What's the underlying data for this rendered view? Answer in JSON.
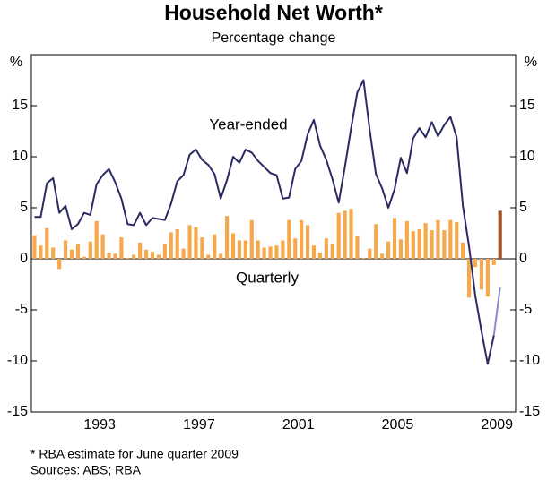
{
  "chart_data": {
    "type": "bar-line",
    "title": "Household Net Worth*",
    "subtitle": "Percentage change",
    "y_label": "%",
    "footnotes": [
      "*    RBA estimate for June quarter 2009",
      "Sources: ABS; RBA"
    ],
    "categories": [
      null,
      null,
      null,
      null,
      null,
      null,
      null,
      null,
      null,
      null,
      null,
      "1993",
      null,
      null,
      null,
      null,
      null,
      null,
      null,
      null,
      null,
      null,
      null,
      null,
      null,
      null,
      null,
      "1997",
      null,
      null,
      null,
      null,
      null,
      null,
      null,
      null,
      null,
      null,
      null,
      null,
      null,
      null,
      null,
      "2001",
      null,
      null,
      null,
      null,
      null,
      null,
      null,
      null,
      null,
      null,
      null,
      null,
      null,
      null,
      null,
      "2005",
      null,
      null,
      null,
      null,
      null,
      null,
      null,
      null,
      null,
      null,
      null,
      null,
      null,
      null,
      null,
      "2009",
      null,
      null
    ],
    "ylim": [
      -15,
      20
    ],
    "yticks": [
      -15,
      -10,
      -5,
      0,
      5,
      10,
      15
    ],
    "series": [
      {
        "name": "Year-ended",
        "type": "line",
        "color": "#2b2a63",
        "values": [
          4.1,
          4.1,
          7.4,
          7.9,
          4.5,
          5.2,
          2.9,
          3.4,
          4.5,
          4.3,
          7.3,
          8.2,
          8.8,
          7.5,
          5.9,
          3.4,
          3.3,
          4.5,
          3.3,
          4.0,
          3.9,
          3.8,
          5.4,
          7.6,
          8.2,
          10.2,
          10.7,
          9.7,
          9.2,
          8.3,
          5.9,
          7.7,
          10.0,
          9.4,
          10.7,
          10.4,
          9.6,
          9.0,
          8.4,
          8.2,
          5.9,
          6.0,
          8.8,
          9.6,
          12.2,
          13.6,
          11.1,
          9.7,
          7.8,
          5.5,
          9.0,
          12.8,
          16.3,
          17.5,
          12.6,
          8.3,
          6.9,
          5.0,
          6.8,
          9.9,
          8.4,
          11.8,
          12.8,
          11.9,
          13.4,
          12.0,
          13.1,
          13.9,
          11.9,
          5.2,
          1.2,
          -3.6,
          -7.1,
          -10.3,
          -7.5,
          -2.8,
          null,
          null
        ],
        "colors": [
          "#2b2a63",
          "#2b2a63",
          "#2b2a63",
          "#2b2a63",
          "#2b2a63",
          "#2b2a63",
          "#2b2a63",
          "#2b2a63",
          "#2b2a63",
          "#2b2a63",
          "#2b2a63",
          "#2b2a63",
          "#2b2a63",
          "#2b2a63",
          "#2b2a63",
          "#2b2a63",
          "#2b2a63",
          "#2b2a63",
          "#2b2a63",
          "#2b2a63",
          "#2b2a63",
          "#2b2a63",
          "#2b2a63",
          "#2b2a63",
          "#2b2a63",
          "#2b2a63",
          "#2b2a63",
          "#2b2a63",
          "#2b2a63",
          "#2b2a63",
          "#2b2a63",
          "#2b2a63",
          "#2b2a63",
          "#2b2a63",
          "#2b2a63",
          "#2b2a63",
          "#2b2a63",
          "#2b2a63",
          "#2b2a63",
          "#2b2a63",
          "#2b2a63",
          "#2b2a63",
          "#2b2a63",
          "#2b2a63",
          "#2b2a63",
          "#2b2a63",
          "#2b2a63",
          "#2b2a63",
          "#2b2a63",
          "#2b2a63",
          "#2b2a63",
          "#2b2a63",
          "#2b2a63",
          "#2b2a63",
          "#2b2a63",
          "#2b2a63",
          "#2b2a63",
          "#2b2a63",
          "#2b2a63",
          "#2b2a63",
          "#2b2a63",
          "#2b2a63",
          "#2b2a63",
          "#2b2a63",
          "#2b2a63",
          "#2b2a63",
          "#2b2a63",
          "#2b2a63",
          "#2b2a63",
          "#2b2a63",
          "#2b2a63",
          "#2b2a63",
          "#2b2a63",
          "#2b2a63",
          "#2b2a63",
          "#8c89c9",
          null,
          null
        ]
      },
      {
        "name": "Quarterly",
        "type": "bar",
        "color": "#f6a84b",
        "values": [
          2.3,
          1.3,
          3.0,
          1.1,
          -1.0,
          1.8,
          0.9,
          1.5,
          0.2,
          1.7,
          3.7,
          2.4,
          0.6,
          0.5,
          2.1,
          0.1,
          0.4,
          1.6,
          0.9,
          0.7,
          0.4,
          1.5,
          2.6,
          2.9,
          1.0,
          3.3,
          3.1,
          2.1,
          0.4,
          2.4,
          0.5,
          4.2,
          2.5,
          1.8,
          1.8,
          3.8,
          1.8,
          1.1,
          1.2,
          1.3,
          1.8,
          3.8,
          2.0,
          3.8,
          3.3,
          1.3,
          0.6,
          2.0,
          1.5,
          4.5,
          4.7,
          4.9,
          2.2,
          0.1,
          1.0,
          3.4,
          0.5,
          1.7,
          4.0,
          1.9,
          3.7,
          2.7,
          2.9,
          3.5,
          2.8,
          3.8,
          2.8,
          3.8,
          3.6,
          1.6,
          -3.8,
          -0.8,
          -3.0,
          -3.7,
          -0.6,
          4.7,
          null,
          null
        ],
        "colors": [
          "#f6a84b",
          "#f6a84b",
          "#f6a84b",
          "#f6a84b",
          "#f6a84b",
          "#f6a84b",
          "#f6a84b",
          "#f6a84b",
          "#f6a84b",
          "#f6a84b",
          "#f6a84b",
          "#f6a84b",
          "#f6a84b",
          "#f6a84b",
          "#f6a84b",
          "#f6a84b",
          "#f6a84b",
          "#f6a84b",
          "#f6a84b",
          "#f6a84b",
          "#f6a84b",
          "#f6a84b",
          "#f6a84b",
          "#f6a84b",
          "#f6a84b",
          "#f6a84b",
          "#f6a84b",
          "#f6a84b",
          "#f6a84b",
          "#f6a84b",
          "#f6a84b",
          "#f6a84b",
          "#f6a84b",
          "#f6a84b",
          "#f6a84b",
          "#f6a84b",
          "#f6a84b",
          "#f6a84b",
          "#f6a84b",
          "#f6a84b",
          "#f6a84b",
          "#f6a84b",
          "#f6a84b",
          "#f6a84b",
          "#f6a84b",
          "#f6a84b",
          "#f6a84b",
          "#f6a84b",
          "#f6a84b",
          "#f6a84b",
          "#f6a84b",
          "#f6a84b",
          "#f6a84b",
          "#f6a84b",
          "#f6a84b",
          "#f6a84b",
          "#f6a84b",
          "#f6a84b",
          "#f6a84b",
          "#f6a84b",
          "#f6a84b",
          "#f6a84b",
          "#f6a84b",
          "#f6a84b",
          "#f6a84b",
          "#f6a84b",
          "#f6a84b",
          "#f6a84b",
          "#f6a84b",
          "#f6a84b",
          "#f6a84b",
          "#f6a84b",
          "#f6a84b",
          "#f6a84b",
          "#f6a84b",
          "#a0522d",
          null,
          null
        ]
      }
    ]
  }
}
